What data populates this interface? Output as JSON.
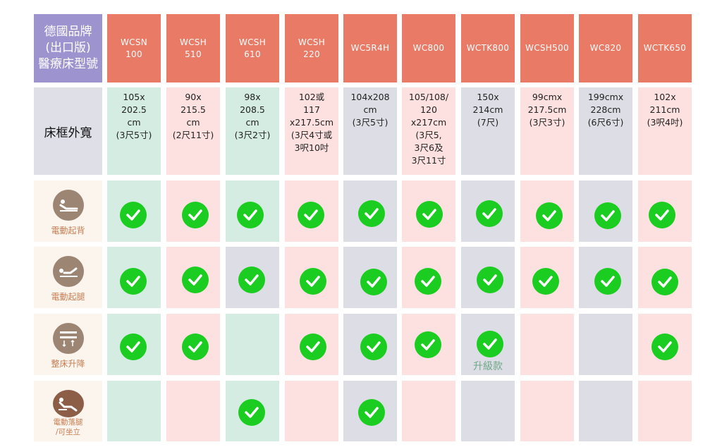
{
  "header": {
    "corner_label": "德國品牌\n(出口版)\n醫療床型號",
    "models": [
      "WCSN\n100",
      "WCSH\n510",
      "WCSH\n610",
      "WCSH\n220",
      "WC5R4H",
      "WC800",
      "WCTK800",
      "WCSH500",
      "WC820",
      "WCTK650"
    ]
  },
  "dimensions": {
    "label": "床框外寬",
    "values": [
      "105x\n202.5\ncm\n(3尺5寸)",
      "90x\n215.5\ncm\n(2尺11寸)",
      "98x\n208.5\ncm\n(3尺2寸)",
      "102或\n117\nx217.5cm\n(3尺4寸或\n3呎10吋",
      "104x208\ncm\n(3尺5寸)",
      "105/108/\n120\nx217cm\n(3尺5,\n3尺6及\n3尺11寸",
      "150x\n214cm\n(7尺)",
      "99cmx\n217.5cm\n(3尺3寸)",
      "199cmx\n228cm\n(6尺6寸)",
      "102x\n211cm\n(3呎4吋)"
    ]
  },
  "features": [
    {
      "label": "電動起背",
      "icon": "backrest-lift-icon",
      "checks": [
        true,
        true,
        true,
        true,
        true,
        true,
        true,
        true,
        true,
        true
      ],
      "notes": [
        "",
        "",
        "",
        "",
        "",
        "",
        "",
        "",
        "",
        ""
      ]
    },
    {
      "label": "電動起腿",
      "icon": "leg-lift-icon",
      "checks": [
        true,
        true,
        true,
        true,
        true,
        true,
        true,
        true,
        true,
        true
      ],
      "notes": [
        "",
        "",
        "",
        "",
        "",
        "",
        "",
        "",
        "",
        ""
      ]
    },
    {
      "label": "整床升降",
      "icon": "bed-height-icon",
      "checks": [
        true,
        true,
        false,
        true,
        true,
        true,
        true,
        false,
        false,
        true
      ],
      "notes": [
        "",
        "",
        "",
        "",
        "",
        "",
        "升級款",
        "",
        "",
        ""
      ]
    },
    {
      "label": "電動落腿\n/可坐立",
      "icon": "leg-drop-sit-icon",
      "checks": [
        false,
        false,
        true,
        false,
        true,
        false,
        false,
        false,
        false,
        false
      ],
      "notes": [
        "",
        "",
        "",
        "",
        "",
        "",
        "",
        "",
        "",
        ""
      ]
    }
  ],
  "colors": {
    "corner": "#9d93cf",
    "model_header": "#e97a66",
    "green": "#d4ece2",
    "pink": "#fde1e0",
    "gray": "#dddde6",
    "check": "#1bcd20",
    "feature_bg": "#fbf5ee"
  }
}
